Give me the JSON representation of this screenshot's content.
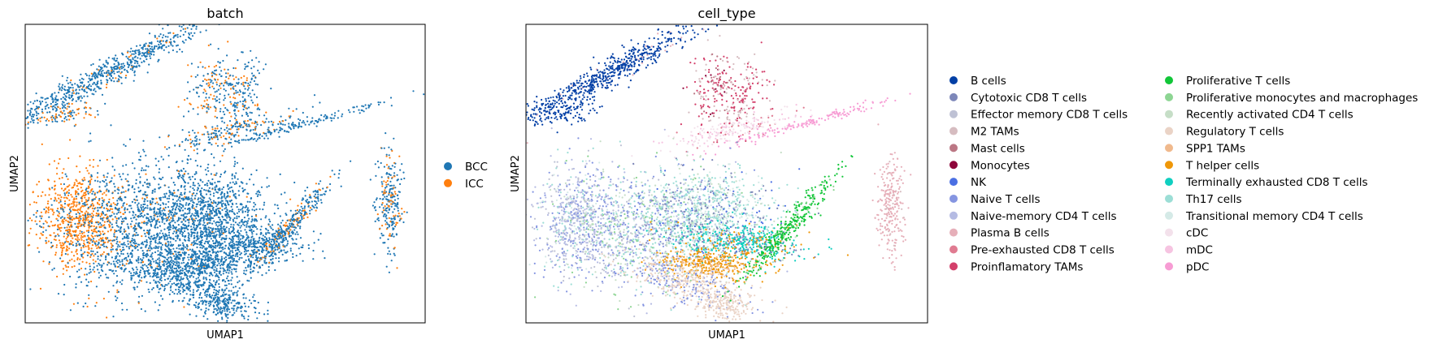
{
  "chart_data": [
    {
      "type": "scatter",
      "title": "batch",
      "xlabel": "UMAP1",
      "ylabel": "UMAP2",
      "xticks": [],
      "yticks": [],
      "legend_position": "right",
      "series": [
        {
          "name": "BCC",
          "color": "#1f77b4"
        },
        {
          "name": "ICC",
          "color": "#ff7f0e"
        }
      ]
    },
    {
      "type": "scatter",
      "title": "cell_type",
      "xlabel": "UMAP1",
      "ylabel": "UMAP2",
      "xticks": [],
      "yticks": [],
      "legend_position": "right",
      "legend_columns": 2,
      "series": [
        {
          "name": "B cells",
          "color": "#023fa5"
        },
        {
          "name": "Cytotoxic CD8 T cells",
          "color": "#7d87b9"
        },
        {
          "name": "Effector memory CD8 T cells",
          "color": "#bec1d4"
        },
        {
          "name": "M2 TAMs",
          "color": "#d6bcc0"
        },
        {
          "name": "Mast cells",
          "color": "#bb7784"
        },
        {
          "name": "Monocytes",
          "color": "#8e063b"
        },
        {
          "name": "NK",
          "color": "#4a6fe3"
        },
        {
          "name": "Naive T cells",
          "color": "#8595e1"
        },
        {
          "name": "Naive-memory CD4 T cells",
          "color": "#b5bbe3"
        },
        {
          "name": "Plasma B cells",
          "color": "#e6afb9"
        },
        {
          "name": "Pre-exhausted CD8 T cells",
          "color": "#e07b91"
        },
        {
          "name": "Proinflamatory TAMs",
          "color": "#d33f6a"
        },
        {
          "name": "Proliferative T cells",
          "color": "#11c638"
        },
        {
          "name": "Proliferative monocytes and macrophages",
          "color": "#8dd593"
        },
        {
          "name": "Recently activated CD4 T cells",
          "color": "#c6dec7"
        },
        {
          "name": "Regulatory T cells",
          "color": "#ead3c6"
        },
        {
          "name": "SPP1 TAMs",
          "color": "#f0b98d"
        },
        {
          "name": "T helper cells",
          "color": "#ef9708"
        },
        {
          "name": "Terminally exhausted CD8 T cells",
          "color": "#0fcfc0"
        },
        {
          "name": "Th17 cells",
          "color": "#9cded6"
        },
        {
          "name": "Transitional memory CD4 T cells",
          "color": "#d5eae7"
        },
        {
          "name": "cDC",
          "color": "#f3e1eb"
        },
        {
          "name": "mDC",
          "color": "#f6c4e1"
        },
        {
          "name": "pDC",
          "color": "#f79cd4"
        }
      ]
    }
  ]
}
